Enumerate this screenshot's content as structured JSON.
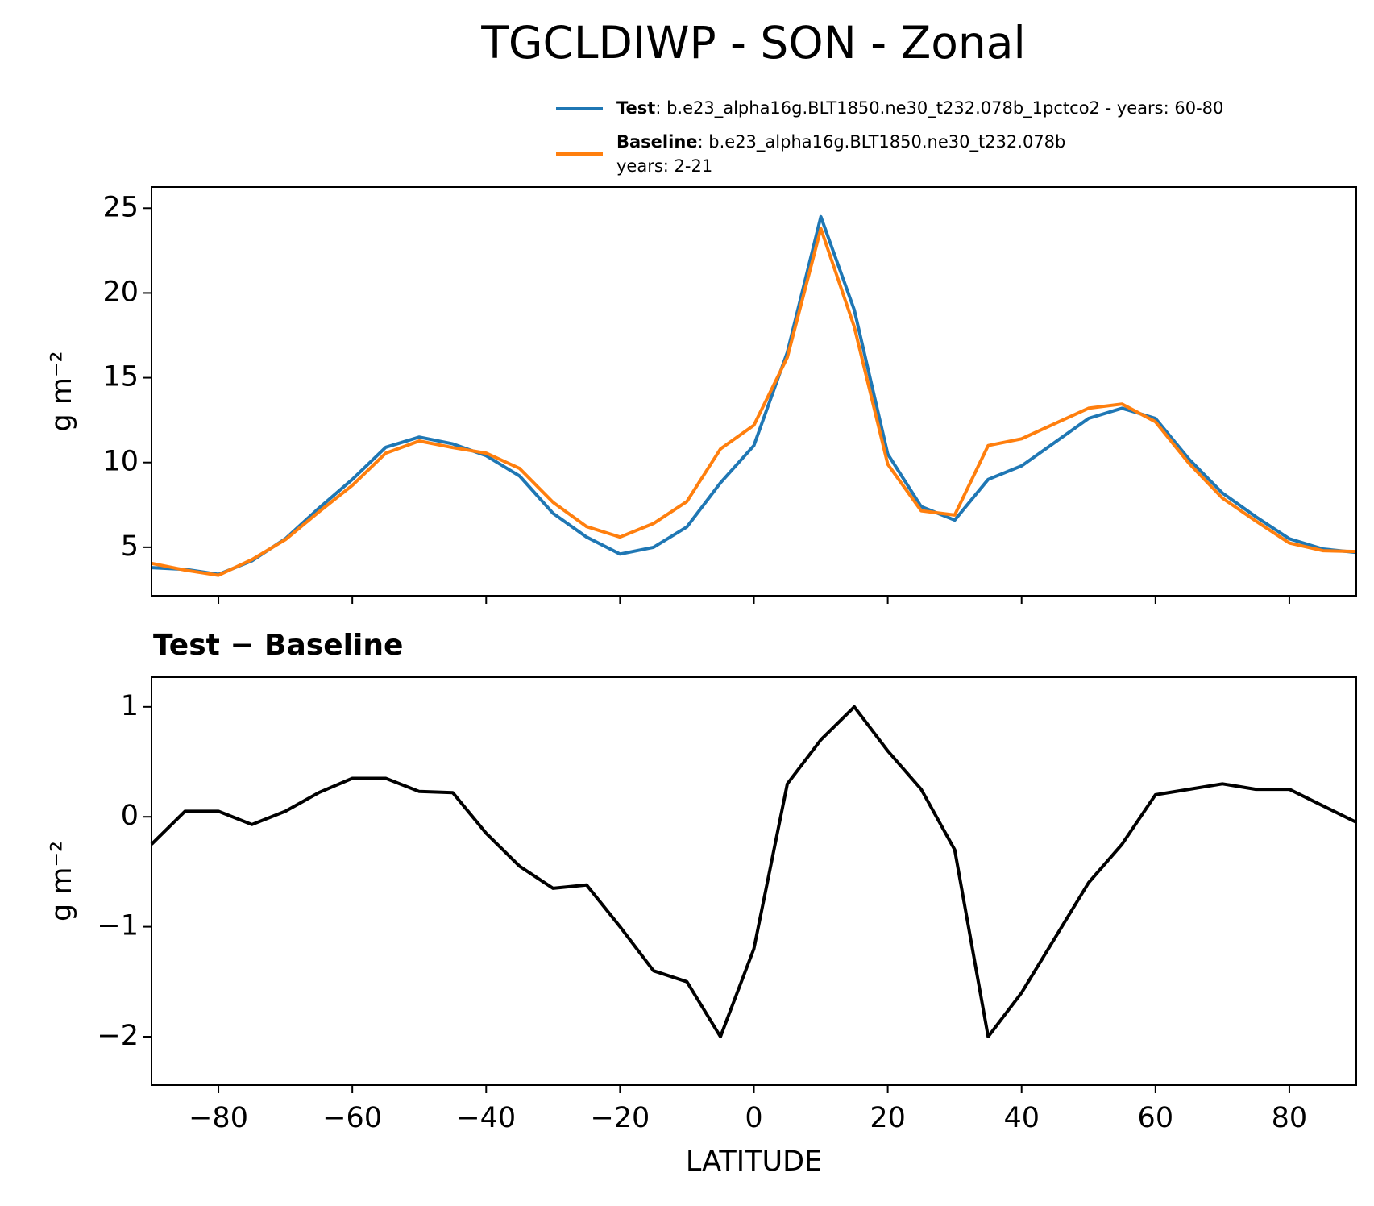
{
  "title": "TGCLDIWP - SON - Zonal",
  "chart_data": [
    {
      "type": "line",
      "x": [
        -90,
        -85,
        -80,
        -75,
        -70,
        -65,
        -60,
        -55,
        -50,
        -45,
        -40,
        -35,
        -30,
        -25,
        -20,
        -15,
        -10,
        -5,
        0,
        5,
        10,
        15,
        20,
        25,
        30,
        35,
        40,
        45,
        50,
        55,
        60,
        65,
        70,
        75,
        80,
        85,
        90
      ],
      "series": [
        {
          "name": "Test",
          "description": [
            ": b.e23_alpha16g.BLT1850.ne30_t232.078b_1pctco2 - years: 60-80"
          ],
          "color": "#1f77b4",
          "values": [
            3.8,
            3.7,
            3.4,
            4.2,
            5.5,
            7.3,
            9.0,
            10.9,
            11.5,
            11.1,
            10.4,
            9.2,
            7.0,
            5.6,
            4.6,
            5.0,
            6.2,
            8.8,
            11.0,
            16.5,
            24.5,
            19.0,
            10.5,
            7.4,
            6.6,
            9.0,
            9.8,
            11.2,
            12.6,
            13.2,
            12.6,
            10.2,
            8.2,
            6.8,
            5.5,
            4.9,
            4.7
          ]
        },
        {
          "name": "Baseline",
          "description": [
            ": b.e23_alpha16g.BLT1850.ne30_t232.078b",
            "years: 2-21"
          ],
          "color": "#ff7f0e",
          "values": [
            4.05,
            3.65,
            3.35,
            4.27,
            5.45,
            7.08,
            8.65,
            10.55,
            11.27,
            10.88,
            10.55,
            9.65,
            7.65,
            6.22,
            5.6,
            6.4,
            7.7,
            10.8,
            12.2,
            16.2,
            23.8,
            18.0,
            9.9,
            7.15,
            6.9,
            11.0,
            11.4,
            12.3,
            13.2,
            13.45,
            12.4,
            9.95,
            7.9,
            6.55,
            5.25,
            4.8,
            4.75
          ]
        }
      ],
      "ylabel": "g m⁻²",
      "xlim": [
        -90,
        90
      ],
      "xticks": [
        -80,
        -60,
        -40,
        -20,
        0,
        20,
        40,
        60,
        80
      ],
      "ylim": [
        2.14,
        26.25
      ],
      "yticks": [
        5,
        10,
        15,
        20,
        25
      ]
    },
    {
      "type": "line",
      "title": "Test − Baseline",
      "x": [
        -90,
        -85,
        -80,
        -75,
        -70,
        -65,
        -60,
        -55,
        -50,
        -45,
        -40,
        -35,
        -30,
        -25,
        -20,
        -15,
        -10,
        -5,
        0,
        5,
        10,
        15,
        20,
        25,
        30,
        35,
        40,
        45,
        50,
        55,
        60,
        65,
        70,
        75,
        80,
        85,
        90
      ],
      "series": [
        {
          "color": "#000000",
          "values": [
            -0.25,
            0.05,
            0.05,
            -0.07,
            0.05,
            0.22,
            0.35,
            0.35,
            0.23,
            0.22,
            -0.15,
            -0.45,
            -0.65,
            -0.62,
            -1.0,
            -1.4,
            -1.5,
            -2.0,
            -1.2,
            0.3,
            0.7,
            1.0,
            0.6,
            0.25,
            -0.3,
            -2.0,
            -1.6,
            -1.1,
            -0.6,
            -0.25,
            0.2,
            0.25,
            0.3,
            0.25,
            0.25,
            0.1,
            -0.05
          ]
        }
      ],
      "xlabel": "LATITUDE",
      "ylabel": "g m⁻²",
      "xlim": [
        -90,
        90
      ],
      "xticks": [
        {
          "value": -80,
          "label": "−80"
        },
        {
          "value": -60,
          "label": "−60"
        },
        {
          "value": -40,
          "label": "−40"
        },
        {
          "value": -20,
          "label": "−20"
        },
        0,
        20,
        40,
        60,
        80
      ],
      "ylim": [
        -2.44,
        1.27
      ],
      "yticks": [
        {
          "value": -2,
          "label": "−2"
        },
        {
          "value": -1,
          "label": "−1"
        },
        0,
        1
      ]
    }
  ]
}
